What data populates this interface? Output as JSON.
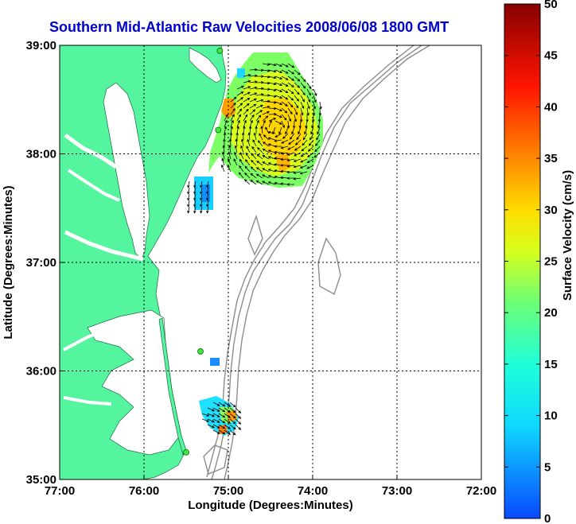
{
  "chart_data": {
    "type": "heatmap",
    "title": "Southern Mid-Atlantic Raw Velocities 2008/06/08 1800 GMT",
    "xlabel": "Longitude (Degrees:Minutes)",
    "ylabel": "Latitude (Degrees:Minutes)",
    "colorbar_label": "Surface Velocity (cm/s)",
    "xlim": [
      -77,
      -72
    ],
    "ylim": [
      35,
      39
    ],
    "x_ticks": [
      {
        "value": -77,
        "label": "77:00"
      },
      {
        "value": -76,
        "label": "76:00"
      },
      {
        "value": -75,
        "label": "75:00"
      },
      {
        "value": -74,
        "label": "74:00"
      },
      {
        "value": -73,
        "label": "73:00"
      },
      {
        "value": -72,
        "label": "72:00"
      }
    ],
    "y_ticks": [
      {
        "value": 35,
        "label": "35:00"
      },
      {
        "value": 36,
        "label": "36:00"
      },
      {
        "value": 37,
        "label": "37:00"
      },
      {
        "value": 38,
        "label": "38:00"
      },
      {
        "value": 39,
        "label": "39:00"
      }
    ],
    "colorbar_range": [
      0,
      50
    ],
    "colorbar_ticks": [
      "0",
      "5",
      "10",
      "15",
      "20",
      "25",
      "30",
      "35",
      "40",
      "45",
      "50"
    ],
    "grid": true,
    "colors": {
      "title": "#0000cc",
      "land": "#55f5a0",
      "contour": "#8c8c8c",
      "grid": "#000000"
    },
    "sites": [
      {
        "lon": -75.1,
        "lat": 38.95
      },
      {
        "lon": -75.12,
        "lat": 38.22
      },
      {
        "lon": -75.33,
        "lat": 36.18
      },
      {
        "lon": -75.5,
        "lat": 35.25
      }
    ],
    "velocity_regions": [
      {
        "name": "north",
        "lon_range": [
          -75.05,
          -74.05
        ],
        "lat_range": [
          37.6,
          38.95
        ],
        "speed_range": [
          15,
          35
        ]
      },
      {
        "name": "south",
        "lon_range": [
          -75.3,
          -74.85
        ],
        "lat_range": [
          35.4,
          35.7
        ],
        "speed_range": [
          10,
          32
        ]
      }
    ]
  }
}
